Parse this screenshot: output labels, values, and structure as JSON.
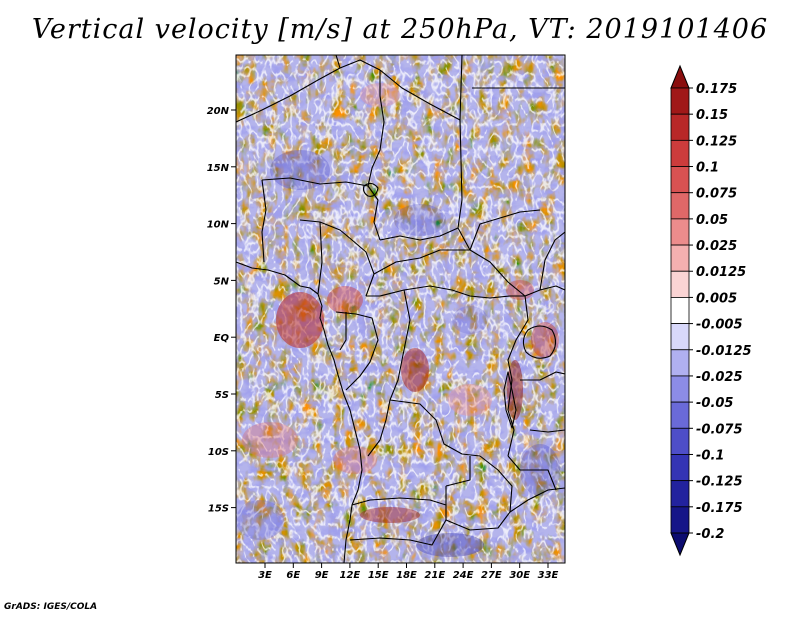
{
  "title": "Vertical velocity [m/s] at 250hPa, VT: 2019101406",
  "footer": "GrADS: IGES/COLA",
  "colors": {
    "red_high": "#a01818",
    "red_mid": "#e06868",
    "red_low": "#f4b0b0",
    "white": "#ffffff",
    "blue_low": "#b0b0f0",
    "blue_mid": "#6a6ad8",
    "blue_high": "#18189a"
  },
  "map": {
    "x_ticks": [
      "3E",
      "6E",
      "9E",
      "12E",
      "15E",
      "18E",
      "21E",
      "24E",
      "27E",
      "30E",
      "33E"
    ],
    "y_ticks": [
      "20N",
      "15N",
      "10N",
      "5N",
      "EQ",
      "5S",
      "10S",
      "15S"
    ]
  },
  "colorbar": {
    "levels": [
      "0.175",
      "0.15",
      "0.125",
      "0.1",
      "0.075",
      "0.05",
      "0.025",
      "0.0125",
      "0.005",
      "-0.005",
      "-0.0125",
      "-0.025",
      "-0.05",
      "-0.075",
      "-0.1",
      "-0.125",
      "-0.175",
      "-0.2"
    ],
    "swatches": [
      "#8a0e0e",
      "#a01818",
      "#b82828",
      "#cc3c3c",
      "#d85252",
      "#e06868",
      "#ec8c8c",
      "#f4b0b0",
      "#fad4d4",
      "#ffffff",
      "#d8d8fa",
      "#b0b0f0",
      "#8c8ce6",
      "#6a6ad8",
      "#4e4ec8",
      "#3434b4",
      "#22229e",
      "#161688",
      "#0c0c70"
    ]
  }
}
